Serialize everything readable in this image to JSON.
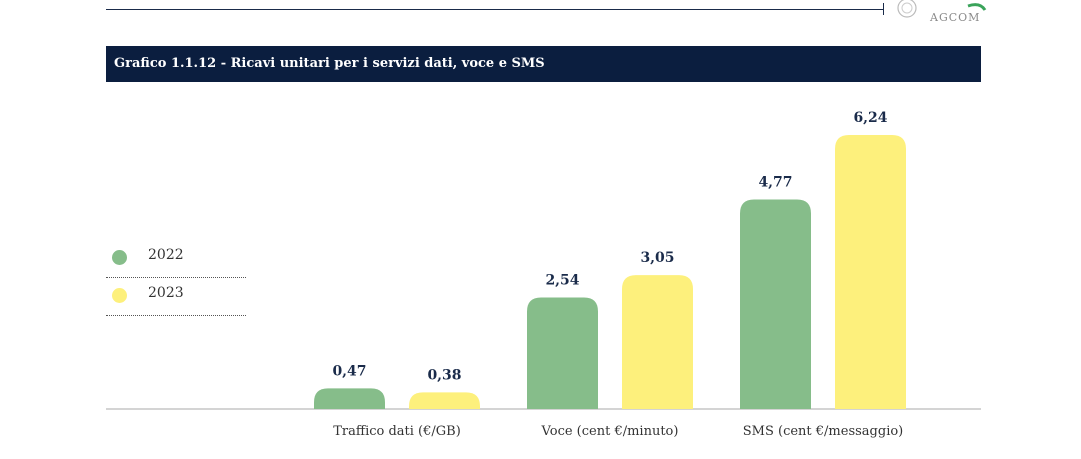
{
  "header": {
    "logo_text": "AGCOM"
  },
  "chart_data": {
    "type": "bar",
    "title": "Grafico 1.1.12 - Ricavi unitari per i servizi dati, voce e SMS",
    "categories": [
      "Traffico dati (€/GB)",
      "Voce (cent €/minuto)",
      "SMS (cent €/messaggio)"
    ],
    "series": [
      {
        "name": "2022",
        "color": "#86bd8a",
        "values": [
          0.47,
          2.54,
          4.77
        ],
        "labels": [
          "0,47",
          "2,54",
          "4,77"
        ]
      },
      {
        "name": "2023",
        "color": "#fdf07c",
        "values": [
          0.38,
          3.05,
          6.24
        ],
        "labels": [
          "0,38",
          "3,05",
          "6,24"
        ]
      }
    ],
    "ylim": [
      0,
      6.24
    ],
    "grid": false,
    "legend_position": "left",
    "label_color": "#1a2b4a"
  }
}
